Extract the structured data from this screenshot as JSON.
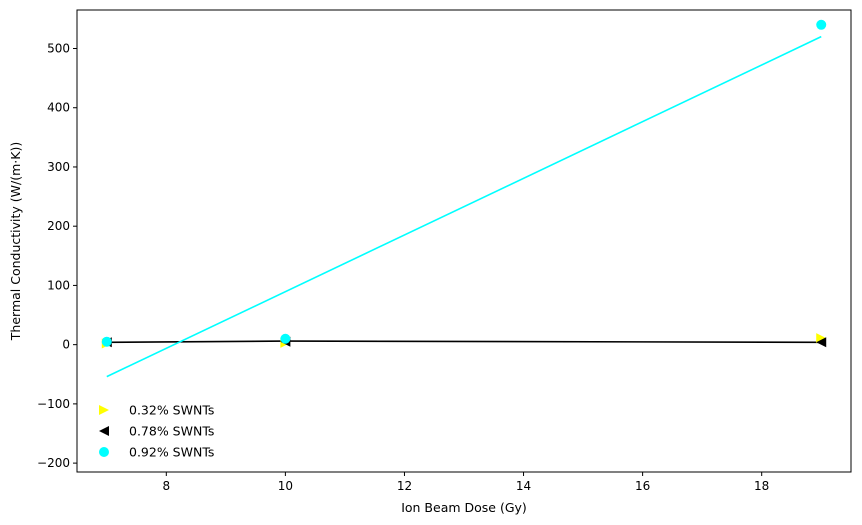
{
  "chart_data": {
    "type": "scatter",
    "title": "",
    "xlabel": "Ion Beam Dose (Gy)",
    "ylabel": "Thermal Conductivity (W/(m·K))",
    "xlim": [
      6.5,
      19.5
    ],
    "ylim": [
      -215,
      565
    ],
    "xticks": [
      8,
      10,
      12,
      14,
      16,
      18
    ],
    "yticks": [
      -200,
      -100,
      0,
      100,
      200,
      300,
      400,
      500
    ],
    "grid": false,
    "legend_position": "lower-left",
    "series": [
      {
        "name": "0.32% SWNTs",
        "marker": "triangle-right",
        "color": "#ffff00",
        "x": [
          7,
          10,
          19
        ],
        "y": [
          2,
          3,
          11
        ],
        "fit_line": null
      },
      {
        "name": "0.78% SWNTs",
        "marker": "triangle-left",
        "color": "#000000",
        "x": [
          7,
          10,
          19
        ],
        "y": [
          4,
          5,
          4
        ],
        "fit_line": {
          "x": [
            7,
            10,
            19
          ],
          "y": [
            4,
            6,
            4
          ]
        }
      },
      {
        "name": "0.92% SWNTs",
        "marker": "circle",
        "color": "#00ffff",
        "x": [
          7,
          10,
          19
        ],
        "y": [
          5,
          10,
          540
        ],
        "fit_line": {
          "x": [
            7,
            19
          ],
          "y": [
            -54,
            520
          ]
        }
      }
    ]
  }
}
